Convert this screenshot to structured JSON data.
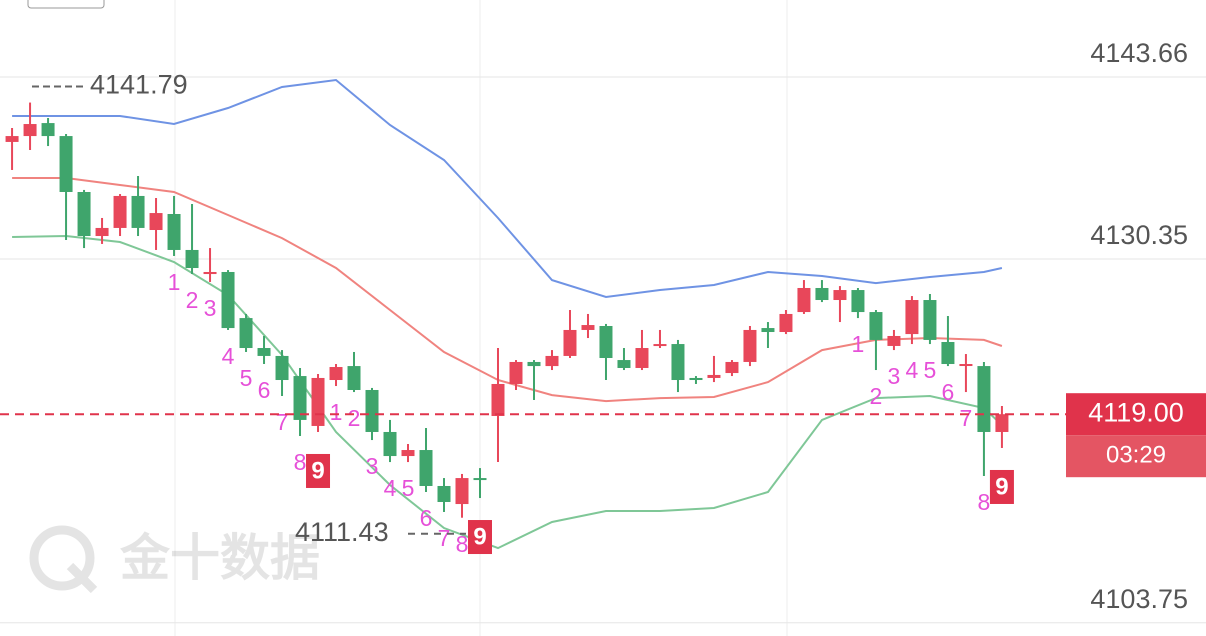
{
  "chart_data": {
    "type": "candlestick",
    "xlim": [
      -0.67,
      58.56
    ],
    "ylim": [
      4102.78,
      4149.29
    ],
    "yticks": [
      4103.75,
      4130.35,
      4143.66
    ],
    "up_color": "#e8475a",
    "down_color": "#3fa56c",
    "open": [
      4138.91,
      4139.34,
      4140.29,
      4139.34,
      4135.25,
      4132.03,
      4132.62,
      4134.96,
      4132.47,
      4133.64,
      4131.01,
      4129.25,
      4129.4,
      4126.03,
      4123.84,
      4123.26,
      4121.79,
      4118.14,
      4121.5,
      4122.52,
      4120.77,
      4117.7,
      4115.94,
      4116.38,
      4113.75,
      4112.43,
      4114.33,
      4118.87,
      4121.21,
      4122.82,
      4122.52,
      4123.26,
      4125.16,
      4125.45,
      4122.96,
      4122.38,
      4123.99,
      4124.13,
      4121.65,
      4121.65,
      4122.01,
      4122.82,
      4125.3,
      4125.01,
      4126.47,
      4128.23,
      4127.35,
      4128.08,
      4126.47,
      4123.99,
      4124.86,
      4127.35,
      4124.28,
      4122.67,
      4122.52,
      4117.7
    ],
    "high": [
      4139.93,
      4141.79,
      4140.66,
      4139.49,
      4135.4,
      4133.35,
      4135.1,
      4136.42,
      4134.81,
      4134.96,
      4134.37,
      4131.15,
      4129.54,
      4126.33,
      4124.72,
      4123.69,
      4122.38,
      4121.94,
      4122.67,
      4123.55,
      4120.92,
      4118.58,
      4116.82,
      4117.99,
      4114.33,
      4114.63,
      4115.06,
      4123.84,
      4122.96,
      4122.96,
      4123.69,
      4126.62,
      4126.33,
      4125.6,
      4123.84,
      4125.16,
      4125.16,
      4124.43,
      4121.79,
      4123.26,
      4122.96,
      4125.45,
      4125.74,
      4126.62,
      4128.81,
      4128.81,
      4128.37,
      4128.23,
      4126.62,
      4125.16,
      4127.64,
      4127.79,
      4126.18,
      4123.4,
      4122.82,
      4119.6
    ],
    "low": [
      4136.86,
      4138.32,
      4138.61,
      4131.74,
      4131.15,
      4131.45,
      4132.03,
      4132.03,
      4131.01,
      4130.57,
      4129.25,
      4128.67,
      4125.16,
      4123.55,
      4122.67,
      4120.33,
      4117.41,
      4117.7,
      4121.06,
      4120.62,
      4117.11,
      4115.5,
      4115.5,
      4113.31,
      4111.85,
      4111.43,
      4112.87,
      4115.5,
      4120.77,
      4120.04,
      4122.23,
      4123.11,
      4124.57,
      4121.5,
      4122.23,
      4122.23,
      4123.84,
      4120.62,
      4121.21,
      4121.35,
      4121.79,
      4122.52,
      4123.84,
      4124.86,
      4126.33,
      4127.2,
      4125.74,
      4126.03,
      4122.23,
      4123.69,
      4124.13,
      4124.13,
      4122.52,
      4120.62,
      4114.48,
      4116.53
    ],
    "close": [
      4139.34,
      4140.22,
      4139.34,
      4135.25,
      4132.03,
      4132.62,
      4134.96,
      4132.62,
      4133.71,
      4131.01,
      4129.69,
      4129.4,
      4125.3,
      4123.84,
      4123.26,
      4121.5,
      4118.58,
      4121.65,
      4122.45,
      4120.77,
      4117.7,
      4115.94,
      4116.38,
      4113.75,
      4112.58,
      4114.33,
      4114.19,
      4121.21,
      4122.82,
      4122.52,
      4123.26,
      4125.16,
      4125.52,
      4123.11,
      4122.38,
      4123.84,
      4124.13,
      4121.5,
      4121.5,
      4121.87,
      4122.82,
      4125.16,
      4125.01,
      4126.33,
      4128.23,
      4127.35,
      4128.08,
      4126.47,
      4124.43,
      4124.72,
      4127.35,
      4124.43,
      4122.67,
      4122.67,
      4117.7,
      4119.0
    ],
    "td_counts": [
      null,
      null,
      null,
      null,
      null,
      null,
      null,
      null,
      null,
      1,
      2,
      3,
      4,
      5,
      6,
      7,
      8,
      9,
      1,
      2,
      3,
      4,
      5,
      6,
      7,
      8,
      9,
      null,
      null,
      null,
      null,
      null,
      null,
      null,
      null,
      null,
      null,
      null,
      null,
      null,
      null,
      null,
      null,
      null,
      null,
      null,
      null,
      1,
      2,
      3,
      4,
      5,
      6,
      7,
      8,
      9
    ],
    "td_color": "#e650d8",
    "bands": [
      {
        "color": "#6f93e4",
        "x": [
          0,
          3,
          6,
          9,
          12,
          15,
          18,
          21,
          24,
          27,
          30,
          33,
          36,
          39,
          42,
          45,
          48,
          51,
          54,
          55
        ],
        "values": [
          4140.81,
          4140.81,
          4140.81,
          4140.22,
          4141.39,
          4142.93,
          4143.44,
          4140.15,
          4137.59,
          4133.35,
          4128.81,
          4127.57,
          4128.08,
          4128.45,
          4129.4,
          4129.11,
          4128.59,
          4129.03,
          4129.4,
          4129.69
        ]
      },
      {
        "color": "#f0837f",
        "x": [
          0,
          3,
          6,
          9,
          12,
          15,
          18,
          21,
          24,
          27,
          30,
          33,
          36,
          39,
          42,
          45,
          48,
          51,
          54,
          55
        ],
        "values": [
          4136.27,
          4136.27,
          4135.76,
          4135.25,
          4133.57,
          4131.88,
          4129.69,
          4126.62,
          4123.55,
          4121.5,
          4120.4,
          4119.96,
          4120.18,
          4120.26,
          4121.35,
          4123.69,
          4124.43,
          4124.57,
          4124.43,
          4123.99
        ]
      },
      {
        "color": "#7fc797",
        "x": [
          0,
          3,
          6,
          9,
          12,
          15,
          18,
          21,
          24,
          27,
          30,
          33,
          36,
          39,
          42,
          45,
          48,
          51,
          54,
          55
        ],
        "values": [
          4131.96,
          4132.03,
          4131.59,
          4130.13,
          4127.72,
          4123.33,
          4117.7,
          4113.82,
          4110.68,
          4109.21,
          4111.12,
          4111.92,
          4111.92,
          4112.14,
          4113.31,
          4118.58,
          4120.18,
          4120.33,
          4119.45,
          4118.21
        ]
      }
    ],
    "high_marker": 4141.79,
    "low_marker": 4111.43,
    "last_price": {
      "value": 4119,
      "label": "4119.00"
    },
    "countdown": "03:29",
    "watermark": "金十数据"
  }
}
